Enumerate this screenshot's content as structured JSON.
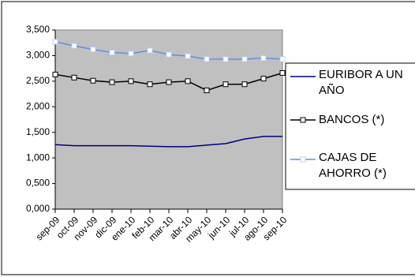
{
  "chart_data": {
    "type": "line",
    "categories": [
      "sep-09",
      "oct-09",
      "nov-09",
      "dic-09",
      "ene-10",
      "feb-10",
      "mar-10",
      "abr-10",
      "may-10",
      "jun-10",
      "jul-10",
      "ago-10",
      "sep-10"
    ],
    "series": [
      {
        "name": "EURIBOR A UN AÑO",
        "color": "#000080",
        "marker": "none",
        "values": [
          1.26,
          1.24,
          1.24,
          1.24,
          1.24,
          1.23,
          1.22,
          1.22,
          1.25,
          1.28,
          1.37,
          1.42,
          1.42
        ]
      },
      {
        "name": "BANCOS (*)",
        "color": "#000000",
        "marker": "square",
        "values": [
          2.63,
          2.57,
          2.51,
          2.48,
          2.5,
          2.44,
          2.48,
          2.5,
          2.32,
          2.44,
          2.44,
          2.55,
          2.66
        ]
      },
      {
        "name": "CAJAS DE AHORRO (*)",
        "color": "#5b8fe8",
        "marker": "square",
        "values": [
          3.27,
          3.19,
          3.12,
          3.06,
          3.04,
          3.1,
          3.02,
          2.99,
          2.93,
          2.93,
          2.93,
          2.95,
          2.93
        ]
      }
    ],
    "ylim": [
      0,
      3.5
    ],
    "yticks": [
      {
        "value": 0,
        "label": "0,000"
      },
      {
        "value": 0.5,
        "label": "0,500"
      },
      {
        "value": 1,
        "label": "1,000"
      },
      {
        "value": 1.5,
        "label": "1,500"
      },
      {
        "value": 2,
        "label": "2,000"
      },
      {
        "value": 2.5,
        "label": "2,500"
      },
      {
        "value": 3,
        "label": "3,000"
      },
      {
        "value": 3.5,
        "label": "3,500"
      }
    ],
    "plot_background": "#c0c0c0",
    "grid": false,
    "legend": "right"
  }
}
